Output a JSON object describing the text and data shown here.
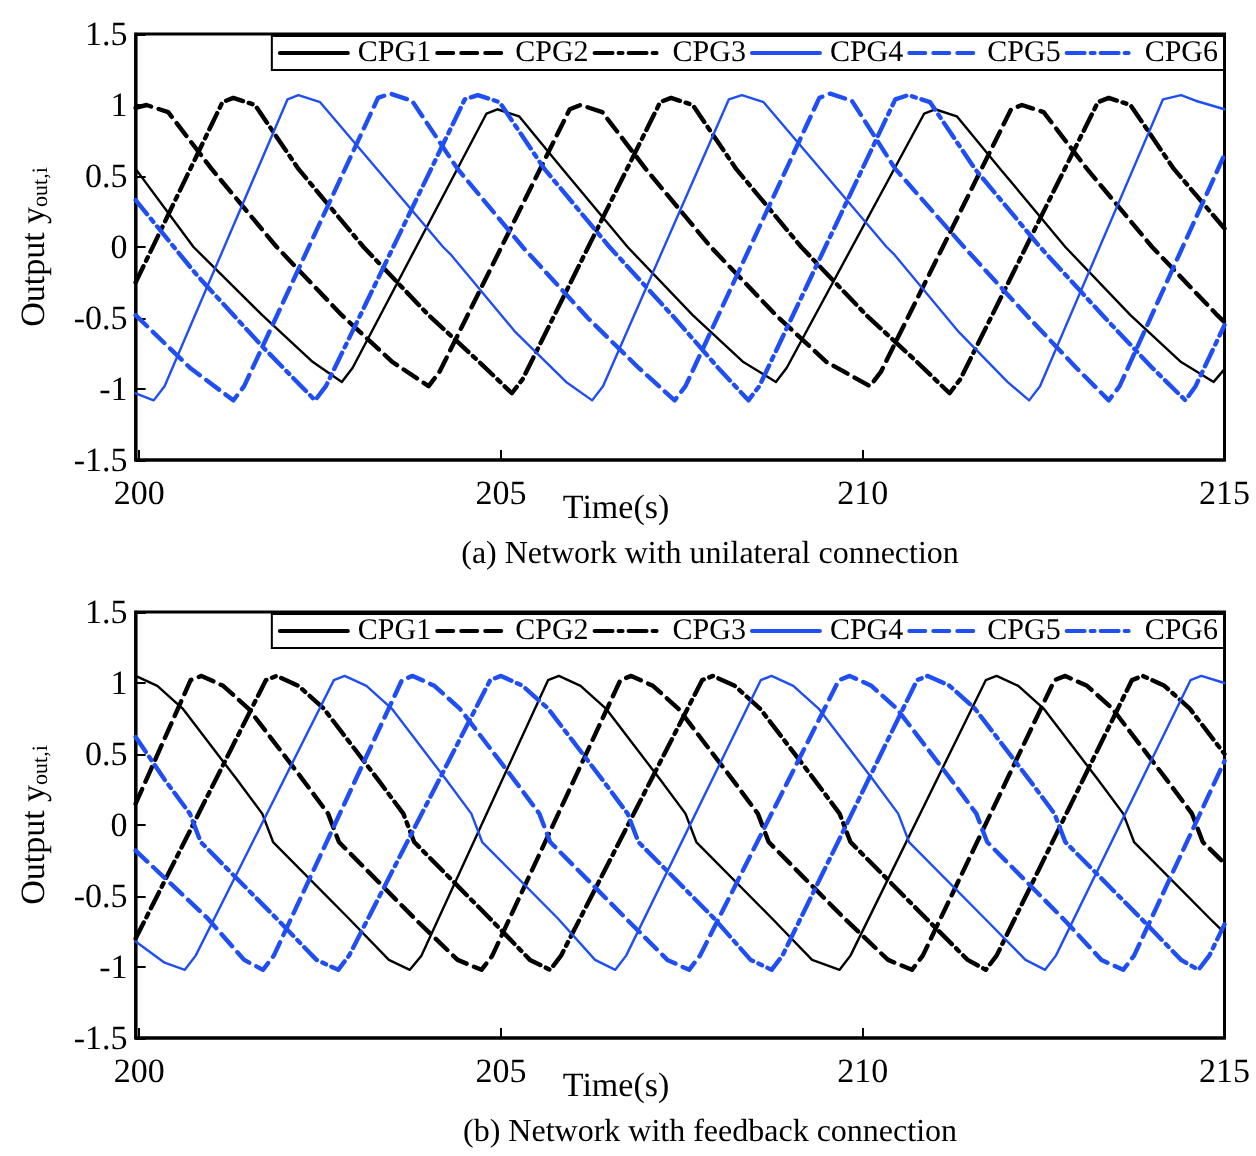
{
  "chart_data": [
    {
      "type": "line",
      "title": "(a) Network with unilateral connection",
      "xlabel": "Time(s)",
      "ylabel": "Output y$_{out,i}$",
      "xlim": [
        199.95,
        215
      ],
      "xticks": [
        200,
        205,
        210,
        215
      ],
      "ylim": [
        -1.5,
        1.5
      ],
      "yticks": [
        -1.5,
        -1,
        -0.5,
        0,
        0.5,
        1,
        1.5
      ],
      "legend": "top right",
      "series": [
        {
          "name": "CPG1",
          "color": "#000000",
          "line_style": "solid",
          "x": [
            199.95,
            200.75,
            201.7,
            202.4,
            202.8,
            202.95,
            204.8,
            204.95,
            205.25,
            205.85,
            206.75,
            207.65,
            208.35,
            208.8,
            208.95,
            210.85,
            211.0,
            211.3,
            211.9,
            212.8,
            213.7,
            214.4,
            214.85,
            215
          ],
          "values": [
            0.55,
            0.0,
            -0.48,
            -0.81,
            -0.95,
            -0.85,
            0.94,
            0.97,
            0.92,
            0.55,
            0.0,
            -0.48,
            -0.81,
            -0.95,
            -0.85,
            0.94,
            0.97,
            0.92,
            0.55,
            0.0,
            -0.48,
            -0.81,
            -0.95,
            -0.86
          ]
        },
        {
          "name": "CPG2",
          "color": "#000000",
          "line_style": "dashed",
          "x": [
            199.95,
            200.1,
            200.4,
            201.0,
            201.9,
            202.8,
            203.5,
            204.0,
            204.15,
            205.95,
            206.1,
            206.4,
            207.0,
            207.9,
            208.8,
            209.5,
            210.1,
            210.25,
            212.05,
            212.2,
            212.5,
            213.1,
            214.0,
            214.9,
            215
          ],
          "values": [
            0.98,
            1.0,
            0.95,
            0.55,
            0.0,
            -0.48,
            -0.81,
            -0.98,
            -0.88,
            0.97,
            1.0,
            0.95,
            0.55,
            0.0,
            -0.48,
            -0.81,
            -0.98,
            -0.88,
            0.97,
            1.0,
            0.95,
            0.55,
            0.0,
            -0.48,
            -0.53
          ]
        },
        {
          "name": "CPG3",
          "color": "#000000",
          "line_style": "dashdot",
          "x": [
            199.95,
            201.15,
            201.3,
            201.6,
            202.2,
            203.1,
            204.0,
            204.7,
            205.15,
            205.3,
            207.2,
            207.35,
            207.65,
            208.25,
            209.15,
            210.05,
            210.75,
            211.2,
            211.35,
            213.25,
            213.4,
            213.7,
            214.3,
            215
          ],
          "values": [
            -0.25,
            1.02,
            1.05,
            1.0,
            0.55,
            0.0,
            -0.48,
            -0.81,
            -1.03,
            -0.93,
            1.02,
            1.05,
            1.0,
            0.55,
            0.0,
            -0.48,
            -0.81,
            -1.03,
            -0.93,
            1.02,
            1.05,
            1.0,
            0.55,
            0.13
          ]
        },
        {
          "name": "CPG4",
          "color": "#1f4ef5",
          "line_style": "solid",
          "x": [
            199.95,
            200.2,
            200.35,
            202.05,
            202.2,
            202.5,
            203.2,
            204.2,
            204.3,
            205.2,
            205.9,
            206.26,
            206.41,
            208.15,
            208.33,
            208.63,
            209.33,
            210.33,
            210.43,
            211.33,
            212.0,
            212.3,
            212.45,
            214.15,
            214.4,
            214.6,
            215
          ],
          "values": [
            -1.03,
            -1.08,
            -0.98,
            1.04,
            1.07,
            1.02,
            0.6,
            0.0,
            -0.05,
            -0.6,
            -0.95,
            -1.08,
            -0.98,
            1.04,
            1.07,
            1.02,
            0.6,
            0.0,
            -0.05,
            -0.6,
            -0.95,
            -1.08,
            -0.98,
            1.04,
            1.07,
            1.03,
            0.97
          ]
        },
        {
          "name": "CPG5",
          "color": "#1f4ef5",
          "line_style": "dashed",
          "x": [
            199.95,
            200.7,
            201.3,
            201.45,
            203.3,
            203.47,
            203.77,
            204.4,
            205.3,
            206.2,
            206.9,
            207.4,
            207.55,
            209.4,
            209.55,
            209.85,
            210.45,
            211.4,
            212.3,
            212.95,
            213.4,
            213.55,
            215
          ],
          "values": [
            -0.48,
            -0.85,
            -1.08,
            -0.98,
            1.05,
            1.08,
            1.03,
            0.55,
            0.0,
            -0.5,
            -0.85,
            -1.08,
            -0.98,
            1.05,
            1.08,
            1.03,
            0.55,
            0.0,
            -0.5,
            -0.85,
            -1.08,
            -0.98,
            0.65
          ]
        },
        {
          "name": "CPG6",
          "color": "#1f4ef5",
          "line_style": "dashdot",
          "x": [
            199.95,
            200.8,
            201.7,
            202.43,
            202.58,
            204.5,
            204.68,
            204.98,
            205.6,
            206.5,
            207.4,
            208.0,
            208.42,
            208.57,
            210.45,
            210.63,
            210.93,
            211.55,
            212.45,
            213.35,
            214.0,
            214.46,
            214.6,
            215
          ],
          "values": [
            0.33,
            -0.2,
            -0.7,
            -1.08,
            -0.98,
            1.04,
            1.07,
            1.02,
            0.55,
            0.0,
            -0.5,
            -0.85,
            -1.08,
            -0.98,
            1.04,
            1.07,
            1.02,
            0.55,
            0.0,
            -0.5,
            -0.85,
            -1.08,
            -0.98,
            -0.55
          ]
        }
      ]
    },
    {
      "type": "line",
      "title": "(b) Network with feedback connection",
      "xlabel": "Time(s)",
      "ylabel": "Output y$_{out,i}$",
      "xlim": [
        199.95,
        215
      ],
      "xticks": [
        200,
        205,
        210,
        215
      ],
      "ylim": [
        -1.5,
        1.5
      ],
      "yticks": [
        -1.5,
        -1,
        -0.5,
        0,
        0.5,
        1,
        1.5
      ],
      "legend": "top right",
      "series": [
        {
          "name": "CPG1",
          "color": "#000000",
          "line_style": "solid",
          "x": [
            199.95,
            200.25,
            200.6,
            201.35,
            201.7,
            201.85,
            202.9,
            203.45,
            203.74,
            203.9,
            205.65,
            205.8,
            206.1,
            206.45,
            207.2,
            207.55,
            207.7,
            208.75,
            209.3,
            209.68,
            209.83,
            211.7,
            211.85,
            212.15,
            212.5,
            213.25,
            213.6,
            213.75,
            214.8,
            215
          ],
          "values": [
            1.05,
            0.98,
            0.82,
            0.32,
            0.08,
            -0.12,
            -0.66,
            -0.95,
            -1.02,
            -0.92,
            1.02,
            1.05,
            0.98,
            0.82,
            0.32,
            0.08,
            -0.12,
            -0.66,
            -0.95,
            -1.02,
            -0.92,
            1.02,
            1.05,
            0.98,
            0.82,
            0.32,
            0.08,
            -0.12,
            -0.66,
            -0.76
          ]
        },
        {
          "name": "CPG2",
          "color": "#000000",
          "line_style": "dashed",
          "x": [
            199.95,
            200.71,
            200.86,
            201.16,
            201.51,
            202.26,
            202.61,
            202.76,
            203.81,
            204.4,
            204.73,
            204.88,
            206.65,
            206.8,
            207.1,
            207.45,
            208.2,
            208.55,
            208.7,
            209.75,
            210.35,
            210.68,
            210.83,
            212.65,
            212.8,
            213.1,
            213.45,
            214.2,
            214.55,
            214.7,
            215
          ],
          "values": [
            0.15,
            1.02,
            1.05,
            0.98,
            0.82,
            0.32,
            0.08,
            -0.12,
            -0.66,
            -0.95,
            -1.02,
            -0.92,
            1.02,
            1.05,
            0.98,
            0.82,
            0.32,
            0.08,
            -0.12,
            -0.66,
            -0.95,
            -1.02,
            -0.92,
            1.02,
            1.05,
            0.98,
            0.82,
            0.32,
            0.08,
            -0.12,
            -0.27
          ]
        },
        {
          "name": "CPG3",
          "color": "#000000",
          "line_style": "dashdot",
          "x": [
            199.95,
            201.75,
            201.9,
            202.2,
            202.55,
            203.3,
            203.65,
            203.8,
            204.85,
            205.4,
            205.68,
            205.83,
            207.78,
            207.93,
            208.23,
            208.58,
            209.33,
            209.68,
            209.83,
            210.88,
            211.45,
            211.7,
            211.85,
            213.72,
            213.87,
            214.17,
            214.52,
            215
          ],
          "values": [
            -0.8,
            1.02,
            1.05,
            0.98,
            0.82,
            0.32,
            0.08,
            -0.12,
            -0.66,
            -0.95,
            -1.02,
            -0.92,
            1.02,
            1.05,
            0.98,
            0.82,
            0.32,
            0.08,
            -0.12,
            -0.66,
            -0.95,
            -1.02,
            -0.92,
            1.02,
            1.05,
            0.98,
            0.82,
            0.5
          ]
        },
        {
          "name": "CPG4",
          "color": "#1f4ef5",
          "line_style": "solid",
          "x": [
            199.95,
            200.35,
            200.63,
            200.78,
            202.69,
            202.84,
            203.14,
            203.49,
            204.24,
            204.59,
            204.74,
            205.79,
            206.3,
            206.58,
            206.73,
            208.59,
            208.74,
            209.04,
            209.39,
            210.14,
            210.49,
            210.64,
            211.69,
            212.25,
            212.52,
            212.67,
            214.53,
            214.68,
            215
          ],
          "values": [
            -0.82,
            -0.97,
            -1.02,
            -0.92,
            1.02,
            1.05,
            0.98,
            0.82,
            0.32,
            0.08,
            -0.12,
            -0.66,
            -0.95,
            -1.02,
            -0.92,
            1.02,
            1.05,
            0.98,
            0.82,
            0.32,
            0.08,
            -0.12,
            -0.66,
            -0.95,
            -1.02,
            -0.92,
            1.02,
            1.05,
            1.0
          ]
        },
        {
          "name": "CPG5",
          "color": "#1f4ef5",
          "line_style": "dashed",
          "x": [
            199.95,
            200.95,
            201.45,
            201.71,
            201.86,
            203.63,
            203.78,
            204.08,
            204.43,
            205.18,
            205.53,
            205.68,
            206.73,
            207.3,
            207.6,
            207.75,
            209.67,
            209.82,
            210.12,
            210.47,
            211.22,
            211.57,
            211.72,
            212.77,
            213.3,
            213.6,
            213.75,
            215
          ],
          "values": [
            -0.18,
            -0.66,
            -0.95,
            -1.02,
            -0.92,
            1.02,
            1.05,
            0.98,
            0.82,
            0.32,
            0.08,
            -0.12,
            -0.66,
            -0.95,
            -1.02,
            -0.92,
            1.02,
            1.05,
            0.98,
            0.82,
            0.32,
            0.08,
            -0.12,
            -0.66,
            -0.95,
            -1.02,
            -0.92,
            0.45
          ]
        },
        {
          "name": "CPG6",
          "color": "#1f4ef5",
          "line_style": "dashdot",
          "x": [
            199.95,
            200.35,
            200.7,
            200.85,
            201.9,
            202.45,
            202.75,
            202.9,
            204.85,
            205.0,
            205.3,
            205.65,
            206.4,
            206.75,
            206.9,
            207.95,
            208.45,
            208.74,
            208.89,
            210.75,
            210.9,
            211.2,
            211.55,
            212.3,
            212.65,
            212.8,
            213.85,
            214.4,
            214.64,
            214.79,
            215
          ],
          "values": [
            0.62,
            0.32,
            0.08,
            -0.12,
            -0.66,
            -0.95,
            -1.02,
            -0.92,
            1.02,
            1.05,
            0.98,
            0.82,
            0.32,
            0.08,
            -0.12,
            -0.66,
            -0.95,
            -1.02,
            -0.92,
            1.02,
            1.05,
            0.98,
            0.82,
            0.32,
            0.08,
            -0.12,
            -0.66,
            -0.95,
            -1.02,
            -0.92,
            -0.7
          ]
        }
      ]
    }
  ]
}
